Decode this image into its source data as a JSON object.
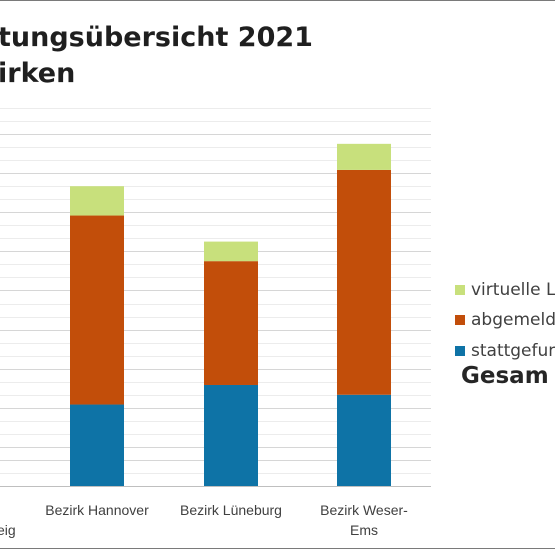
{
  "title_lines": [
    "tungsübersicht 2021",
    "irken"
  ],
  "gesamt_label": "Gesam",
  "chart_data": {
    "type": "bar",
    "stacked": true,
    "title": "tungsübersicht 2021 irken",
    "categories": [
      [
        "",
        "eig"
      ],
      [
        "Bezirk Hannover",
        ""
      ],
      [
        "Bezirk Lüneburg",
        ""
      ],
      [
        "Bezirk Weser-",
        "Ems"
      ]
    ],
    "series": [
      {
        "name": "stattgefun",
        "color": "#0E73A6",
        "values": [
          null,
          12.5,
          15.5,
          14.0
        ]
      },
      {
        "name": "abgemeld",
        "color": "#C24E0A",
        "values": [
          null,
          29.0,
          19.0,
          34.5
        ]
      },
      {
        "name": "virtuelle L",
        "color": "#C8E07C",
        "values": [
          null,
          4.5,
          3.0,
          4.0
        ]
      }
    ],
    "ylim": [
      0,
      58
    ],
    "grid": true,
    "legend_position": "right",
    "legend_order": [
      "virtuelle L",
      "abgemeld",
      "stattgefun"
    ]
  }
}
